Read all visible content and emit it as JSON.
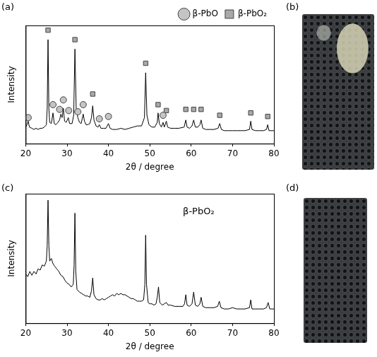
{
  "chart_data": [
    {
      "type": "line",
      "panel": "(a)",
      "x_label": "2θ / degree",
      "y_label": "Intensity",
      "xlim": [
        20,
        80
      ],
      "xticks": [
        20,
        30,
        40,
        50,
        60,
        70,
        80
      ],
      "ylim": [
        0,
        100
      ],
      "tick_labels": "x",
      "grid": false,
      "legend": "top right",
      "series": [
        {
          "color": "#000000",
          "marker": "none",
          "line_style": "solid",
          "x": [
            20,
            20.3,
            20.6,
            20.9,
            21.5,
            22,
            22.5,
            23,
            23.5,
            24,
            24.5,
            25,
            25.2,
            25.4,
            25.6,
            25.8,
            26.2,
            26.6,
            26.9,
            27.3,
            27.8,
            28.2,
            28.5,
            28.8,
            29.1,
            29.4,
            29.8,
            30.3,
            30.6,
            31.2,
            31.6,
            31.9,
            32.2,
            32.6,
            33.0,
            33.4,
            33.9,
            34.2,
            34.6,
            35.0,
            35.5,
            35.9,
            36.2,
            36.5,
            37.0,
            37.5,
            37.8,
            38.2,
            38.8,
            39.4,
            40.0,
            40.4,
            41,
            42,
            43,
            44,
            45,
            46,
            47,
            48,
            48.7,
            49.0,
            49.3,
            49.8,
            50.5,
            51.2,
            51.8,
            52.0,
            52.3,
            52.8,
            53.2,
            53.5,
            54.0,
            54.3,
            55,
            56,
            57,
            58.3,
            58.7,
            59.0,
            59.6,
            60.2,
            60.6,
            61.0,
            61.6,
            62.1,
            62.4,
            62.8,
            63.5,
            64.5,
            65.5,
            66.5,
            66.9,
            67.3,
            68,
            69,
            70,
            71,
            72,
            73,
            74.1,
            74.4,
            74.7,
            75.5,
            76.5,
            77.5,
            78.2,
            78.5,
            78.8,
            79.5,
            80
          ],
          "values": [
            14,
            16,
            19,
            14,
            13,
            12,
            13,
            12,
            13,
            13,
            14,
            16,
            30,
            88,
            30,
            18,
            17,
            26,
            17,
            16,
            18,
            20,
            25,
            22,
            30,
            19,
            18,
            22,
            17,
            17,
            24,
            80,
            30,
            22,
            18,
            17,
            25,
            19,
            16,
            16,
            17,
            22,
            32,
            20,
            15,
            14,
            16,
            13,
            13,
            13,
            17,
            13,
            12,
            12,
            13,
            12,
            13,
            14,
            15,
            15,
            22,
            60,
            24,
            16,
            14,
            14,
            18,
            26,
            17,
            14,
            18,
            14,
            19,
            14,
            13,
            13,
            13,
            14,
            20,
            14,
            13,
            15,
            20,
            14,
            14,
            16,
            20,
            13,
            12,
            12,
            12,
            13,
            17,
            12,
            11,
            11,
            11,
            11,
            11,
            11,
            12,
            19,
            12,
            11,
            11,
            11,
            12,
            16,
            11,
            11,
            11
          ]
        },
        {
          "name": "β-PbO",
          "color": "#c4c4c4",
          "marker": "circle",
          "line_style": "none",
          "x": [
            20.6,
            26.6,
            28.2,
            29.1,
            30.4,
            32.6,
            33.9,
            37.8,
            40.0,
            53.2
          ],
          "values": [
            22,
            33,
            29,
            37,
            28,
            27,
            33,
            21,
            23,
            24
          ]
        },
        {
          "name": "β-PbO₂",
          "color": "#a9a9a9",
          "marker": "square",
          "line_style": "none",
          "x": [
            25.4,
            31.9,
            36.2,
            49.0,
            52.0,
            54.0,
            58.7,
            60.6,
            62.4,
            66.9,
            74.4,
            78.5
          ],
          "values": [
            96,
            88,
            42,
            68,
            33,
            28,
            29,
            29,
            29,
            24,
            26,
            23
          ]
        }
      ]
    },
    {
      "type": "line",
      "panel": "(c)",
      "x_label": "2θ / degree",
      "y_label": "Intensity",
      "xlim": [
        20,
        80
      ],
      "xticks": [
        20,
        30,
        40,
        50,
        60,
        70,
        80
      ],
      "ylim": [
        0,
        100
      ],
      "tick_labels": "x",
      "grid": false,
      "annotations": [
        {
          "text": "β-PbO₂",
          "x": 58,
          "y": 86
        }
      ],
      "series": [
        {
          "color": "#000000",
          "marker": "none",
          "line_style": "solid",
          "x": [
            20,
            20.5,
            21,
            21.5,
            22,
            22.5,
            23,
            23.5,
            24,
            24.5,
            25,
            25.2,
            25.4,
            25.6,
            25.8,
            26.2,
            26.6,
            27,
            27.5,
            28,
            28.5,
            29,
            29.5,
            30,
            30.5,
            31,
            31.5,
            31.7,
            31.9,
            32.1,
            32.4,
            33,
            33.5,
            34,
            34.5,
            35,
            35.5,
            35.9,
            36.2,
            36.5,
            37,
            37.5,
            38,
            38.5,
            39,
            39.5,
            40,
            40.5,
            41,
            41.5,
            42,
            42.5,
            43,
            43.5,
            44,
            44.5,
            45,
            45.5,
            46,
            46.5,
            47,
            47.5,
            48,
            48.5,
            48.8,
            49.0,
            49.2,
            49.6,
            50,
            50.5,
            51,
            51.5,
            51.8,
            52.1,
            52.4,
            53,
            53.5,
            54,
            54.4,
            55,
            56,
            57,
            58,
            58.4,
            58.7,
            59,
            59.6,
            60.2,
            60.6,
            61,
            61.6,
            62.1,
            62.4,
            62.8,
            63.5,
            64.5,
            65.5,
            66.4,
            66.8,
            67.2,
            68,
            69,
            70,
            71,
            72,
            73,
            74.1,
            74.4,
            74.7,
            75.5,
            76.5,
            77.5,
            78.2,
            78.6,
            79,
            79.5,
            80
          ],
          "values": [
            38,
            36,
            40,
            37,
            40,
            38,
            42,
            41,
            45,
            44,
            48,
            60,
            95,
            60,
            48,
            50,
            46,
            44,
            42,
            40,
            37,
            36,
            33,
            31,
            30,
            28,
            30,
            45,
            85,
            40,
            26,
            24,
            23,
            22,
            21,
            21,
            20,
            25,
            35,
            22,
            19,
            18,
            18,
            19,
            18,
            19,
            20,
            21,
            22,
            21,
            23,
            22,
            23,
            22,
            22,
            21,
            20,
            19,
            19,
            18,
            17,
            17,
            17,
            18,
            30,
            68,
            30,
            16,
            15,
            15,
            14,
            15,
            20,
            28,
            16,
            14,
            15,
            16,
            14,
            14,
            13,
            13,
            13,
            15,
            22,
            14,
            13,
            15,
            24,
            14,
            13,
            15,
            20,
            13,
            12,
            12,
            12,
            13,
            17,
            12,
            11,
            11,
            12,
            11,
            11,
            11,
            12,
            18,
            11,
            11,
            11,
            11,
            12,
            16,
            11,
            11,
            11
          ]
        }
      ]
    }
  ],
  "photos": [
    {
      "panel": "(b)"
    },
    {
      "panel": "(d)"
    }
  ]
}
